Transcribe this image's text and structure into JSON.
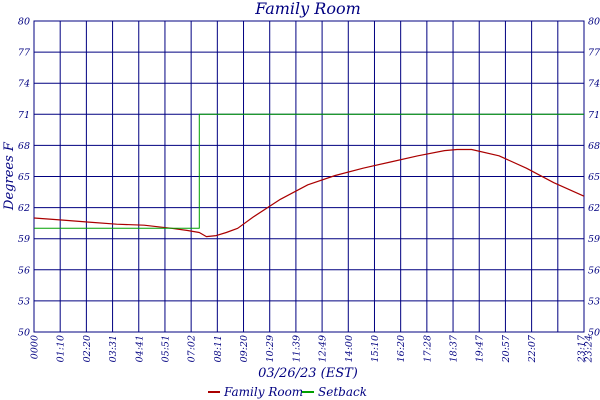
{
  "chart_data": {
    "type": "line",
    "title": "Family Room",
    "xlabel": "03/26/23 (EST)",
    "ylabel": "Degrees F",
    "ylim": [
      50,
      80
    ],
    "y_ticks": [
      "50",
      "53",
      "56",
      "59",
      "62",
      "65",
      "68",
      "71",
      "74",
      "77",
      "80"
    ],
    "x_ticks": [
      "0000",
      "01:10",
      "02:20",
      "03:31",
      "04:41",
      "05:51",
      "07:02",
      "08:11",
      "09:20",
      "10:29",
      "11:39",
      "12:49",
      "14:00",
      "15:10",
      "16:20",
      "17:28",
      "18:37",
      "19:47",
      "20:57",
      "22:07",
      "23:17",
      "23:24"
    ],
    "grid": true,
    "legend_position": "bottom",
    "series": [
      {
        "name": "Family Room",
        "color": "#aa0000",
        "x": [
          "00:00",
          "01:10",
          "02:20",
          "03:31",
          "04:41",
          "05:51",
          "06:30",
          "07:02",
          "07:20",
          "07:45",
          "08:11",
          "08:40",
          "09:20",
          "10:29",
          "11:39",
          "12:49",
          "14:00",
          "15:10",
          "16:20",
          "17:28",
          "18:00",
          "18:37",
          "19:47",
          "20:57",
          "22:07",
          "23:24"
        ],
        "values": [
          61.0,
          60.8,
          60.6,
          60.4,
          60.3,
          60.0,
          59.8,
          59.6,
          59.2,
          59.3,
          59.6,
          60.0,
          61.1,
          62.8,
          64.2,
          65.1,
          65.8,
          66.4,
          67.0,
          67.5,
          67.6,
          67.6,
          67.0,
          65.8,
          64.4,
          63.1
        ]
      },
      {
        "name": "Setback",
        "color": "#00a000",
        "x": [
          "00:00",
          "07:02",
          "07:02",
          "23:24"
        ],
        "values": [
          60.0,
          60.0,
          71.0,
          71.0
        ]
      }
    ]
  }
}
